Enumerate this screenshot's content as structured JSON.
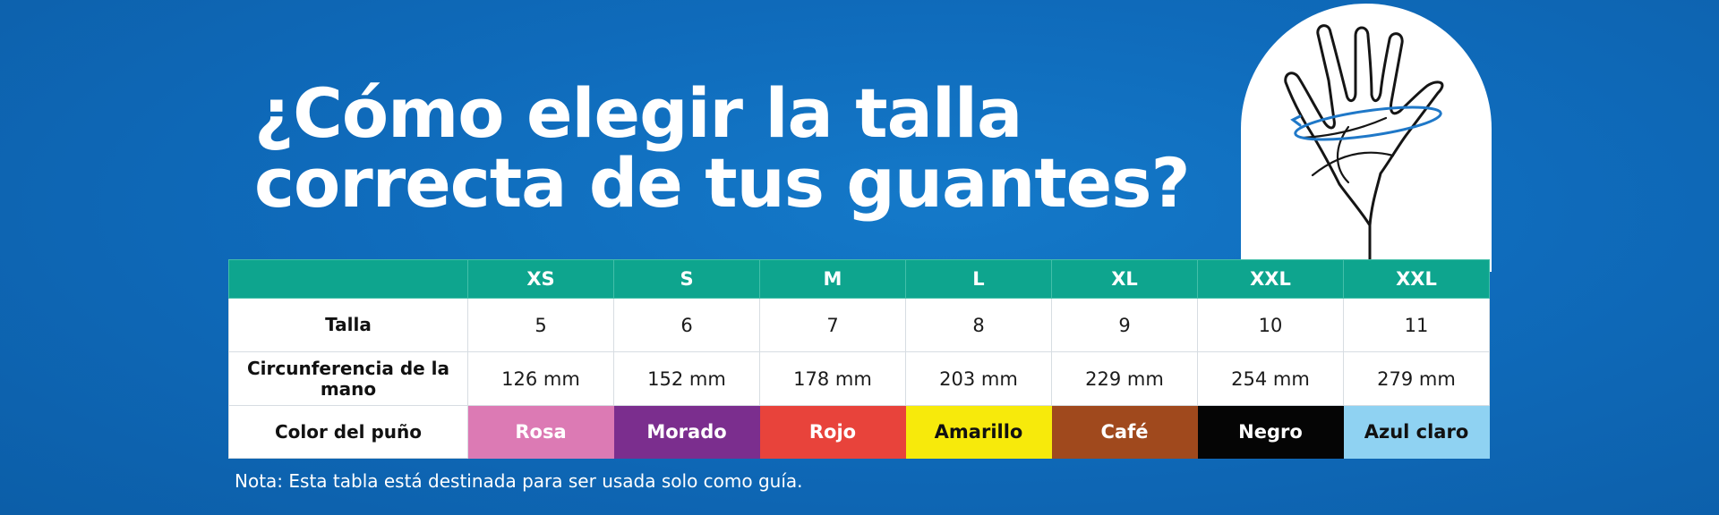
{
  "title": {
    "line1": "¿Cómo elegir la talla",
    "line2": "correcta de tus guantes?"
  },
  "hand_icon": "hand-measure-icon",
  "table": {
    "sizes": [
      "XS",
      "S",
      "M",
      "L",
      "XL",
      "XXL",
      "XXL"
    ],
    "rows": [
      {
        "label": "Talla",
        "values": [
          "5",
          "6",
          "7",
          "8",
          "9",
          "10",
          "11"
        ]
      },
      {
        "label": "Circunferencia de la mano",
        "values": [
          "126 mm",
          "152 mm",
          "178 mm",
          "203 mm",
          "229 mm",
          "254 mm",
          "279 mm"
        ]
      },
      {
        "label": "Color del puño",
        "values": [
          "Rosa",
          "Morado",
          "Rojo",
          "Amarillo",
          "Café",
          "Negro",
          "Azul claro"
        ]
      }
    ],
    "cuff_colors": [
      {
        "bg": "#dc7ab4",
        "fg": "#ffffff"
      },
      {
        "bg": "#7b2e8e",
        "fg": "#ffffff"
      },
      {
        "bg": "#e8433b",
        "fg": "#ffffff"
      },
      {
        "bg": "#f7ea0b",
        "fg": "#111111"
      },
      {
        "bg": "#a0491d",
        "fg": "#ffffff"
      },
      {
        "bg": "#050505",
        "fg": "#ffffff"
      },
      {
        "bg": "#8fd2f2",
        "fg": "#111111"
      }
    ],
    "header_color": "#0ea58e"
  },
  "note": "Nota: Esta tabla está destinada para ser usada solo como guía."
}
